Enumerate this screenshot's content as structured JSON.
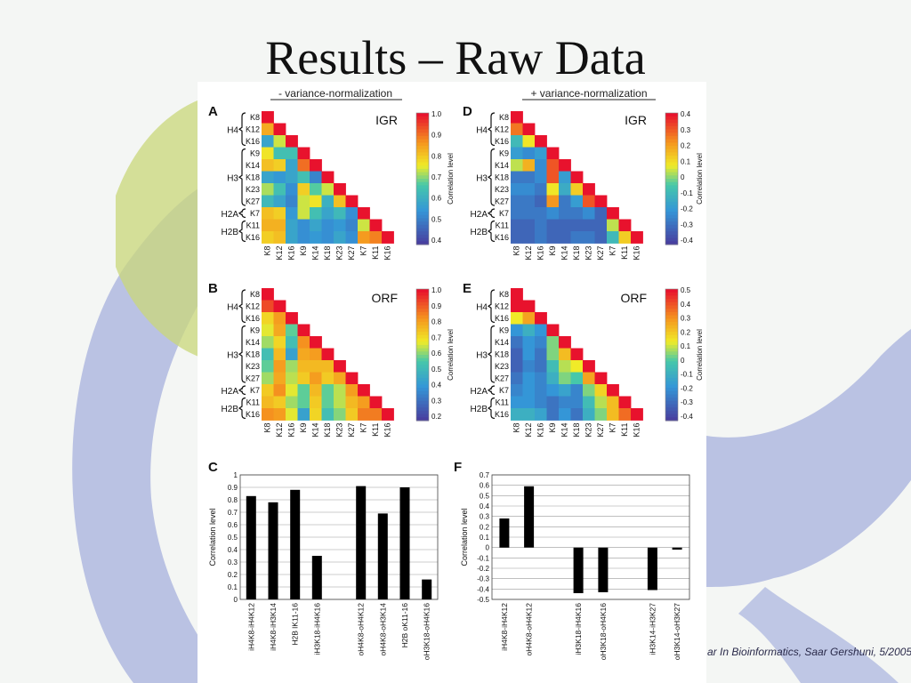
{
  "slide": {
    "title": "Results – Raw Data",
    "footer": "ar In Bioinformatics, Saar Gershuni, 5/2005"
  },
  "colors": {
    "low": "#4a3f9a",
    "high": "#e8112d",
    "background_tube": "#8a97d6"
  },
  "chart_data": [
    {
      "panel": "A",
      "type": "heatmap",
      "column_header": "- variance-normalization",
      "label": "IGR",
      "row_labels": [
        "K8",
        "K12",
        "K16",
        "K9",
        "K14",
        "K18",
        "K23",
        "K27",
        "K7",
        "K11",
        "K16"
      ],
      "col_labels": [
        "K8",
        "K12",
        "K16",
        "K9",
        "K14",
        "K18",
        "K23",
        "K27",
        "K7",
        "K11",
        "K16"
      ],
      "groups": [
        {
          "name": "H4",
          "rows": [
            0,
            2
          ]
        },
        {
          "name": "H3",
          "rows": [
            3,
            7
          ]
        },
        {
          "name": "H2A",
          "rows": [
            8,
            8
          ]
        },
        {
          "name": "H2B",
          "rows": [
            9,
            10
          ]
        }
      ],
      "colorbar": {
        "ticks": [
          "1.0",
          "0.9",
          "0.8",
          "0.7",
          "0.6",
          "0.5",
          "0.4"
        ],
        "min": 0.35,
        "max": 1.0,
        "label": "Correlation level"
      },
      "values": [
        [
          1.0
        ],
        [
          0.83,
          1.0
        ],
        [
          0.55,
          0.72,
          1.0
        ],
        [
          0.75,
          0.62,
          0.62,
          1.0
        ],
        [
          0.8,
          0.78,
          0.55,
          0.9,
          1.0
        ],
        [
          0.55,
          0.52,
          0.55,
          0.62,
          0.48,
          1.0
        ],
        [
          0.7,
          0.62,
          0.5,
          0.78,
          0.65,
          0.72,
          1.0
        ],
        [
          0.6,
          0.55,
          0.48,
          0.72,
          0.75,
          0.58,
          0.8,
          1.0
        ],
        [
          0.8,
          0.78,
          0.52,
          0.72,
          0.62,
          0.55,
          0.6,
          0.5,
          1.0
        ],
        [
          0.82,
          0.82,
          0.55,
          0.5,
          0.55,
          0.5,
          0.52,
          0.48,
          0.72,
          1.0
        ],
        [
          0.78,
          0.8,
          0.55,
          0.5,
          0.52,
          0.5,
          0.55,
          0.5,
          0.85,
          0.88,
          1.0
        ]
      ]
    },
    {
      "panel": "D",
      "type": "heatmap",
      "column_header": "+ variance-normalization",
      "label": "IGR",
      "row_labels": [
        "K8",
        "K12",
        "K16",
        "K9",
        "K14",
        "K18",
        "K23",
        "K27",
        "K7",
        "K11",
        "K16"
      ],
      "col_labels": [
        "K8",
        "K12",
        "K16",
        "K9",
        "K14",
        "K18",
        "K23",
        "K27",
        "K7",
        "K11",
        "K16"
      ],
      "groups": [
        {
          "name": "H4",
          "rows": [
            0,
            2
          ]
        },
        {
          "name": "H3",
          "rows": [
            3,
            7
          ]
        },
        {
          "name": "H2A",
          "rows": [
            8,
            8
          ]
        },
        {
          "name": "H2B",
          "rows": [
            9,
            10
          ]
        }
      ],
      "colorbar": {
        "ticks": [
          "0.4",
          "0.3",
          "0.2",
          "0.1",
          "0",
          "-0.1",
          "-0.2",
          "-0.3",
          "-0.4"
        ],
        "min": -0.45,
        "max": 0.45,
        "label": "Correlation level"
      },
      "values": [
        [
          0.45
        ],
        [
          0.3,
          0.45
        ],
        [
          -0.1,
          0.1,
          0.45
        ],
        [
          -0.2,
          -0.25,
          -0.2,
          0.45
        ],
        [
          0.05,
          0.2,
          -0.25,
          0.35,
          0.45
        ],
        [
          -0.3,
          -0.3,
          -0.25,
          0.35,
          -0.2,
          0.45
        ],
        [
          -0.25,
          -0.25,
          -0.3,
          0.1,
          -0.15,
          0.15,
          0.45
        ],
        [
          -0.3,
          -0.3,
          -0.35,
          0.25,
          -0.3,
          -0.2,
          0.35,
          0.45
        ],
        [
          -0.3,
          -0.3,
          -0.3,
          -0.25,
          -0.3,
          -0.3,
          -0.25,
          -0.35,
          0.45
        ],
        [
          -0.35,
          -0.35,
          -0.3,
          -0.35,
          -0.35,
          -0.35,
          -0.35,
          -0.35,
          0.05,
          0.45
        ],
        [
          -0.35,
          -0.35,
          -0.3,
          -0.35,
          -0.35,
          -0.3,
          -0.3,
          -0.35,
          -0.1,
          0.15,
          0.45
        ]
      ]
    },
    {
      "panel": "B",
      "type": "heatmap",
      "label": "ORF",
      "row_labels": [
        "K8",
        "K12",
        "K16",
        "K9",
        "K14",
        "K18",
        "K23",
        "K27",
        "K7",
        "K11",
        "K16"
      ],
      "col_labels": [
        "K8",
        "K12",
        "K16",
        "K9",
        "K14",
        "K18",
        "K23",
        "K27",
        "K7",
        "K11",
        "K16"
      ],
      "groups": [
        {
          "name": "H4",
          "rows": [
            0,
            2
          ]
        },
        {
          "name": "H3",
          "rows": [
            3,
            7
          ]
        },
        {
          "name": "H2A",
          "rows": [
            8,
            8
          ]
        },
        {
          "name": "H2B",
          "rows": [
            9,
            10
          ]
        }
      ],
      "colorbar": {
        "ticks": [
          "1.0",
          "0.9",
          "0.8",
          "0.7",
          "0.6",
          "0.5",
          "0.4",
          "0.3",
          "0.2"
        ],
        "min": 0.15,
        "max": 1.0,
        "label": "Correlation level"
      },
      "values": [
        [
          1.0
        ],
        [
          0.92,
          1.0
        ],
        [
          0.7,
          0.8,
          1.0
        ],
        [
          0.65,
          0.78,
          0.55,
          1.0
        ],
        [
          0.6,
          0.7,
          0.5,
          0.82,
          1.0
        ],
        [
          0.5,
          0.75,
          0.4,
          0.78,
          0.8,
          1.0
        ],
        [
          0.55,
          0.8,
          0.6,
          0.75,
          0.75,
          0.75,
          1.0
        ],
        [
          0.6,
          0.78,
          0.62,
          0.72,
          0.8,
          0.72,
          0.78,
          1.0
        ],
        [
          0.72,
          0.82,
          0.65,
          0.55,
          0.75,
          0.55,
          0.62,
          0.8,
          1.0
        ],
        [
          0.75,
          0.72,
          0.6,
          0.55,
          0.72,
          0.55,
          0.62,
          0.75,
          0.8,
          1.0
        ],
        [
          0.82,
          0.8,
          0.65,
          0.4,
          0.7,
          0.5,
          0.58,
          0.72,
          0.85,
          0.85,
          1.0
        ]
      ]
    },
    {
      "panel": "E",
      "type": "heatmap",
      "label": "ORF",
      "row_labels": [
        "K8",
        "K12",
        "K16",
        "K9",
        "K14",
        "K18",
        "K23",
        "K27",
        "K7",
        "K11",
        "K16"
      ],
      "col_labels": [
        "K8",
        "K12",
        "K16",
        "K9",
        "K14",
        "K18",
        "K23",
        "K27",
        "K7",
        "K11",
        "K16"
      ],
      "groups": [
        {
          "name": "H4",
          "rows": [
            0,
            2
          ]
        },
        {
          "name": "H3",
          "rows": [
            3,
            7
          ]
        },
        {
          "name": "H2A",
          "rows": [
            8,
            8
          ]
        },
        {
          "name": "H2B",
          "rows": [
            9,
            10
          ]
        }
      ],
      "colorbar": {
        "ticks": [
          "0.5",
          "0.4",
          "0.3",
          "0.2",
          "0.1",
          "0",
          "-0.1",
          "-0.2",
          "-0.3",
          "-0.4"
        ],
        "min": -0.45,
        "max": 0.55,
        "label": "Correlation level"
      },
      "values": [
        [
          0.55
        ],
        [
          0.55,
          0.55
        ],
        [
          0.15,
          0.3,
          0.55
        ],
        [
          -0.2,
          -0.1,
          -0.2,
          0.55
        ],
        [
          -0.3,
          -0.2,
          -0.25,
          0.05,
          0.55
        ],
        [
          -0.35,
          -0.2,
          -0.3,
          0.05,
          0.25,
          0.55
        ],
        [
          -0.35,
          -0.25,
          -0.3,
          -0.05,
          0.1,
          0.15,
          0.55
        ],
        [
          -0.3,
          -0.2,
          -0.25,
          -0.1,
          0.05,
          0.0,
          0.3,
          0.55
        ],
        [
          -0.25,
          -0.2,
          -0.25,
          -0.2,
          -0.15,
          -0.25,
          0.05,
          0.2,
          0.55
        ],
        [
          -0.2,
          -0.2,
          -0.25,
          -0.3,
          -0.25,
          -0.25,
          -0.05,
          0.1,
          0.25,
          0.55
        ],
        [
          -0.1,
          -0.1,
          -0.15,
          -0.3,
          -0.2,
          -0.3,
          -0.1,
          0.05,
          0.25,
          0.4,
          0.55
        ]
      ]
    },
    {
      "panel": "C",
      "type": "bar",
      "ylabel": "Correlation level",
      "ylim": [
        0,
        1.0
      ],
      "yticks": [
        "1",
        "0.9",
        "0.8",
        "0.7",
        "0.6",
        "0.5",
        "0.4",
        "0.3",
        "0.2",
        "0.1",
        "0"
      ],
      "categories": [
        "iH4K8-iH4K12",
        "iH4K8-iH3K14",
        "H2B lK11-16",
        "iH3K18-iH4K16",
        "",
        "oH4K8-oH4K12",
        "oH4K8-oH3K14",
        "H2B oK11-16",
        "oH3K18-oH4K16"
      ],
      "values": [
        0.83,
        0.78,
        0.88,
        0.35,
        null,
        0.91,
        0.69,
        0.9,
        0.16
      ]
    },
    {
      "panel": "F",
      "type": "bar",
      "ylabel": "Correlation level",
      "ylim": [
        -0.5,
        0.7
      ],
      "yticks": [
        "0.7",
        "0.6",
        "0.5",
        "0.4",
        "0.3",
        "0.2",
        "0.1",
        "0",
        "-0.1",
        "-0.2",
        "-0.3",
        "-0.4",
        "-0.5"
      ],
      "categories": [
        "iH4K8-iH4K12",
        "oH4K8-oH4K12",
        "",
        "iH3K18-iH4K16",
        "oH3K18-oH4K16",
        "",
        "iH3K14-iH3K27",
        "oH3K14-oH3K27"
      ],
      "values": [
        0.28,
        0.59,
        null,
        -0.44,
        -0.43,
        null,
        -0.41,
        -0.02
      ]
    }
  ]
}
